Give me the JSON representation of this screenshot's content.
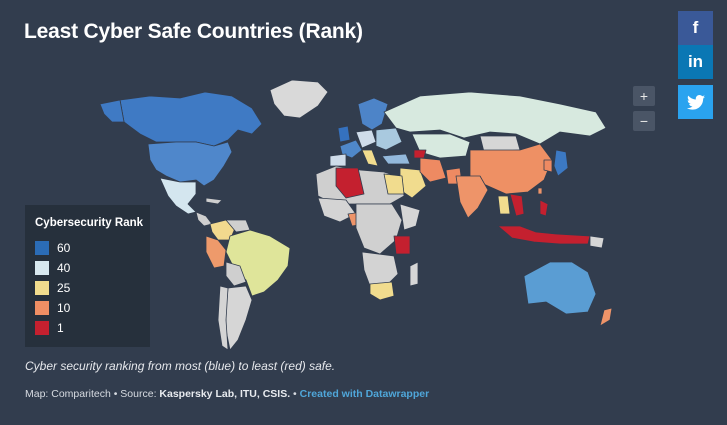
{
  "title": "Least Cyber Safe Countries (Rank)",
  "share": {
    "facebook_icon": "f",
    "linkedin_icon": "in",
    "twitter_icon": "twitter-bird"
  },
  "zoom": {
    "in_label": "+",
    "out_label": "−"
  },
  "legend": {
    "title": "Cybersecurity Rank",
    "items": [
      {
        "label": "60",
        "color": "#2b6cb6"
      },
      {
        "label": "40",
        "color": "#d8e8ef"
      },
      {
        "label": "25",
        "color": "#f1dc8e"
      },
      {
        "label": "10",
        "color": "#ef8e64"
      },
      {
        "label": "1",
        "color": "#c4202f"
      }
    ]
  },
  "caption": "Cyber security ranking from most (blue) to least (red) safe.",
  "footer": {
    "map_credit": "Map: Comparitech • Source: ",
    "sources": "Kaspersky Lab, ITU, CSIS.",
    "separator": " • ",
    "link": "Created with Datawrapper"
  }
}
